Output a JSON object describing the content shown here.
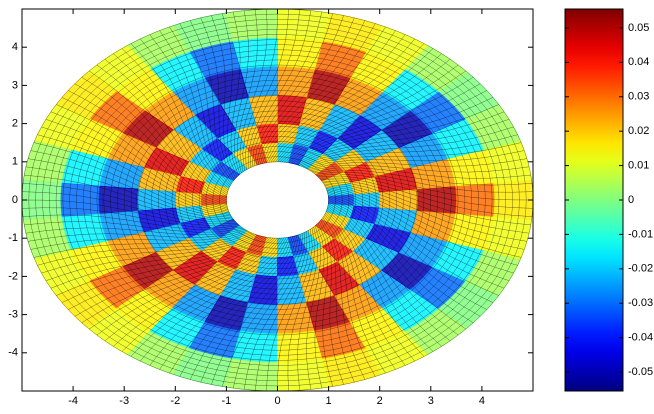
{
  "chart_data": {
    "type": "polar-mesh",
    "r_edges": [
      1,
      1.5,
      2,
      2.75,
      3.5,
      4.25,
      5
    ],
    "theta_edges_deg": [
      -6,
      354
    ],
    "values": [
      [
        -0.035,
        -0.018,
        0.018,
        0.035,
        0.018,
        -0.018,
        -0.035,
        -0.018,
        0.018,
        0.035,
        0.018,
        -0.018,
        -0.035,
        -0.018,
        0.018,
        0.035,
        0.018,
        -0.018,
        -0.035,
        -0.018,
        0.018,
        0.035,
        0.018,
        -0.018,
        -0.035,
        -0.018,
        0.018,
        0.035,
        0.018,
        -0.018
      ],
      [
        -0.02,
        0.02,
        0.04,
        0.02,
        -0.02,
        -0.04,
        -0.02,
        0.02,
        0.04,
        0.02,
        -0.02,
        -0.04,
        -0.02,
        0.02,
        0.04,
        0.02,
        -0.02,
        -0.04,
        -0.02,
        0.02,
        0.04,
        0.02,
        -0.02,
        -0.04,
        -0.02,
        0.02,
        0.04,
        0.02,
        -0.02,
        -0.04
      ],
      [
        0.022,
        0.045,
        0.022,
        -0.022,
        -0.045,
        -0.022,
        0.022,
        0.045,
        0.022,
        -0.022,
        -0.045,
        -0.022,
        0.022,
        0.045,
        0.022,
        -0.022,
        -0.045,
        -0.022,
        0.022,
        0.045,
        0.022,
        -0.022,
        -0.045,
        -0.022,
        0.022,
        0.045,
        0.022,
        -0.022,
        -0.045,
        -0.022
      ],
      [
        0.05,
        0.025,
        -0.025,
        -0.05,
        -0.025,
        0.025,
        0.05,
        0.025,
        -0.025,
        -0.05,
        -0.025,
        0.025,
        0.05,
        0.025,
        -0.025,
        -0.05,
        -0.025,
        0.025,
        0.05,
        0.025,
        -0.025,
        -0.05,
        -0.025,
        0.025,
        0.05,
        0.025,
        -0.025,
        -0.05,
        -0.025,
        0.025
      ],
      [
        0.03,
        0.015,
        -0.015,
        -0.03,
        -0.015,
        0.015,
        0.03,
        0.015,
        -0.015,
        -0.03,
        -0.015,
        0.015,
        0.03,
        0.015,
        -0.015,
        -0.03,
        -0.015,
        0.015,
        0.03,
        0.015,
        -0.015,
        -0.03,
        -0.015,
        0.015,
        0.03,
        0.015,
        -0.015,
        -0.03,
        -0.015,
        0.015
      ],
      [
        0.016,
        0.012,
        0.004,
        0,
        0.004,
        0.012,
        0.016,
        0.012,
        0.004,
        0,
        0.004,
        0.012,
        0.016,
        0.012,
        0.004,
        0,
        0.004,
        0.012,
        0.016,
        0.012,
        0.004,
        0,
        0.004,
        0.012,
        0.016,
        0.012,
        0.004,
        0,
        0.004,
        0.012
      ]
    ],
    "xlim": [
      -5,
      5
    ],
    "ylim": [
      -5,
      5
    ],
    "xticks": [
      -4,
      -3,
      -2,
      -1,
      0,
      1,
      2,
      3,
      4
    ],
    "yticks": [
      -4,
      -3,
      -2,
      -1,
      0,
      1,
      2,
      3,
      4
    ],
    "clim": [
      -0.0555,
      0.0555
    ],
    "cticks": [
      -0.05,
      -0.04,
      -0.03,
      -0.02,
      -0.01,
      0,
      0.01,
      0.02,
      0.03,
      0.04,
      0.05
    ],
    "colormap": "jet",
    "mesh_lines": true
  }
}
